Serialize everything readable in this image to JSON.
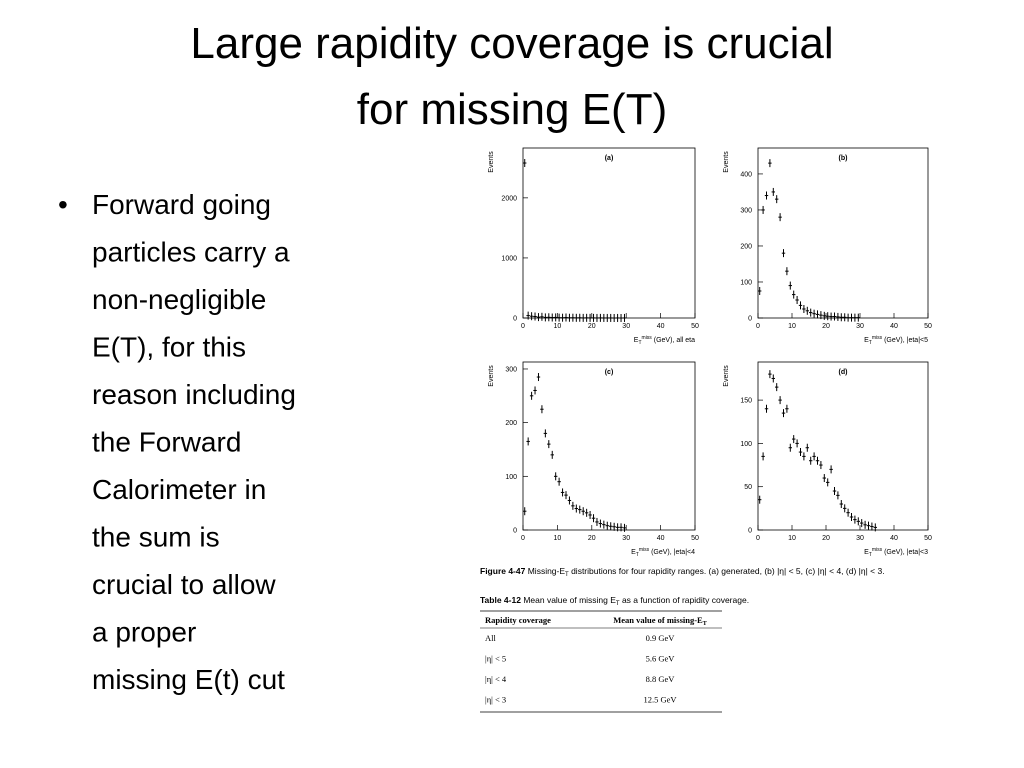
{
  "title_lines": [
    "Large rapidity coverage is crucial",
    "for missing E(T)"
  ],
  "bullet_lines": [
    "Forward going",
    "particles carry a",
    "non-negligible",
    "E(T), for this",
    "reason including",
    "the Forward",
    "Calorimeter in",
    "the sum is",
    "crucial to allow",
    "a proper",
    "missing E(t) cut"
  ],
  "chart_data": [
    {
      "type": "scatter",
      "title": "(a)",
      "ylabel": "Events",
      "xlabel": {
        "symbol": "E",
        "sub": "T",
        "sup": "miss",
        "text": " (GeV), all eta"
      },
      "x": [
        0.5,
        1.5,
        2.5,
        3.5,
        4.5,
        5.5,
        6.5,
        7.5,
        8.5,
        9.5,
        10.5,
        11.5,
        12.5,
        13.5,
        14.5,
        15.5,
        16.5,
        17.5,
        18.5,
        19.5,
        20.5,
        21.5,
        22.5,
        23.5,
        24.5,
        25.5,
        26.5,
        27.5,
        28.5,
        29.5
      ],
      "values": [
        2580,
        40,
        30,
        25,
        15,
        20,
        10,
        12,
        8,
        10,
        6,
        5,
        8,
        4,
        5,
        3,
        4,
        2,
        3,
        2,
        2,
        1,
        2,
        1,
        1,
        1,
        0,
        1,
        0,
        1
      ],
      "xlim": [
        0,
        50
      ],
      "xticks": [
        0,
        10,
        20,
        30,
        40,
        50
      ],
      "ylim": [
        0,
        2830
      ],
      "yticks": [
        0,
        1000,
        2000
      ],
      "color": "#000000"
    },
    {
      "type": "scatter",
      "title": "(b)",
      "ylabel": "Events",
      "xlabel": {
        "symbol": "E",
        "sub": "T",
        "sup": "miss",
        "text": " (GeV),  |eta|<5"
      },
      "x": [
        0.5,
        1.5,
        2.5,
        3.5,
        4.5,
        5.5,
        6.5,
        7.5,
        8.5,
        9.5,
        10.5,
        11.5,
        12.5,
        13.5,
        14.5,
        15.5,
        16.5,
        17.5,
        18.5,
        19.5,
        20.5,
        21.5,
        22.5,
        23.5,
        24.5,
        25.5,
        26.5,
        27.5,
        28.5,
        29.5
      ],
      "values": [
        75,
        300,
        340,
        430,
        350,
        330,
        280,
        180,
        130,
        90,
        65,
        50,
        35,
        25,
        20,
        15,
        12,
        10,
        8,
        6,
        5,
        4,
        4,
        3,
        2,
        2,
        1,
        1,
        1,
        1
      ],
      "xlim": [
        0,
        50
      ],
      "xticks": [
        0,
        10,
        20,
        30,
        40,
        50
      ],
      "ylim": [
        0,
        472
      ],
      "yticks": [
        0,
        100,
        200,
        300,
        400
      ],
      "color": "#000000"
    },
    {
      "type": "scatter",
      "title": "(c)",
      "ylabel": "Events",
      "xlabel": {
        "symbol": "E",
        "sub": "T",
        "sup": "miss",
        "text": " (GeV),  |eta|<4"
      },
      "x": [
        0.5,
        1.5,
        2.5,
        3.5,
        4.5,
        5.5,
        6.5,
        7.5,
        8.5,
        9.5,
        10.5,
        11.5,
        12.5,
        13.5,
        14.5,
        15.5,
        16.5,
        17.5,
        18.5,
        19.5,
        20.5,
        21.5,
        22.5,
        23.5,
        24.5,
        25.5,
        26.5,
        27.5,
        28.5,
        29.5
      ],
      "values": [
        35,
        165,
        250,
        260,
        285,
        225,
        180,
        160,
        140,
        100,
        90,
        70,
        65,
        55,
        45,
        40,
        38,
        35,
        32,
        28,
        22,
        15,
        12,
        10,
        8,
        7,
        6,
        5,
        5,
        4
      ],
      "xlim": [
        0,
        50
      ],
      "xticks": [
        0,
        10,
        20,
        30,
        40,
        50
      ],
      "ylim": [
        0,
        313
      ],
      "yticks": [
        0,
        100,
        200,
        300
      ],
      "color": "#000000"
    },
    {
      "type": "scatter",
      "title": "(d)",
      "ylabel": "Events",
      "xlabel": {
        "symbol": "E",
        "sub": "T",
        "sup": "miss",
        "text": " (GeV),  |eta|<3"
      },
      "x": [
        0.5,
        1.5,
        2.5,
        3.5,
        4.5,
        5.5,
        6.5,
        7.5,
        8.5,
        9.5,
        10.5,
        11.5,
        12.5,
        13.5,
        14.5,
        15.5,
        16.5,
        17.5,
        18.5,
        19.5,
        20.5,
        21.5,
        22.5,
        23.5,
        24.5,
        25.5,
        26.5,
        27.5,
        28.5,
        29.5,
        30.5,
        31.5,
        32.5,
        33.5,
        34.5
      ],
      "values": [
        35,
        85,
        140,
        180,
        175,
        165,
        150,
        135,
        140,
        95,
        105,
        100,
        90,
        85,
        95,
        80,
        85,
        80,
        75,
        60,
        55,
        70,
        45,
        40,
        30,
        25,
        20,
        15,
        12,
        10,
        8,
        6,
        5,
        4,
        3
      ],
      "xlim": [
        0,
        50
      ],
      "xticks": [
        0,
        10,
        20,
        30,
        40,
        50
      ],
      "ylim": [
        0,
        194
      ],
      "yticks": [
        0,
        50,
        100,
        150
      ],
      "color": "#000000"
    }
  ],
  "figure_caption": {
    "label": "Figure 4-47",
    "text1": "  Missing-E",
    "sub": "T",
    "text2": " distributions for four rapidity ranges. (a) generated, (b) |η| < 5, (c) |η| < 4, (d) |η| < 3."
  },
  "table": {
    "caption": {
      "label": "Table 4-12",
      "text1": "  Mean value of missing E",
      "sub": "T",
      "text2": " as a function of rapidity coverage."
    },
    "header": [
      "Rapidity coverage",
      "Mean value of missing-E"
    ],
    "header_sub": "T",
    "rows": [
      [
        "All",
        "0.9 GeV"
      ],
      [
        "|η|  < 5",
        "5.6 GeV"
      ],
      [
        "|η|  < 4",
        "8.8 GeV"
      ],
      [
        "|η|  < 3",
        "12.5 GeV"
      ]
    ]
  }
}
